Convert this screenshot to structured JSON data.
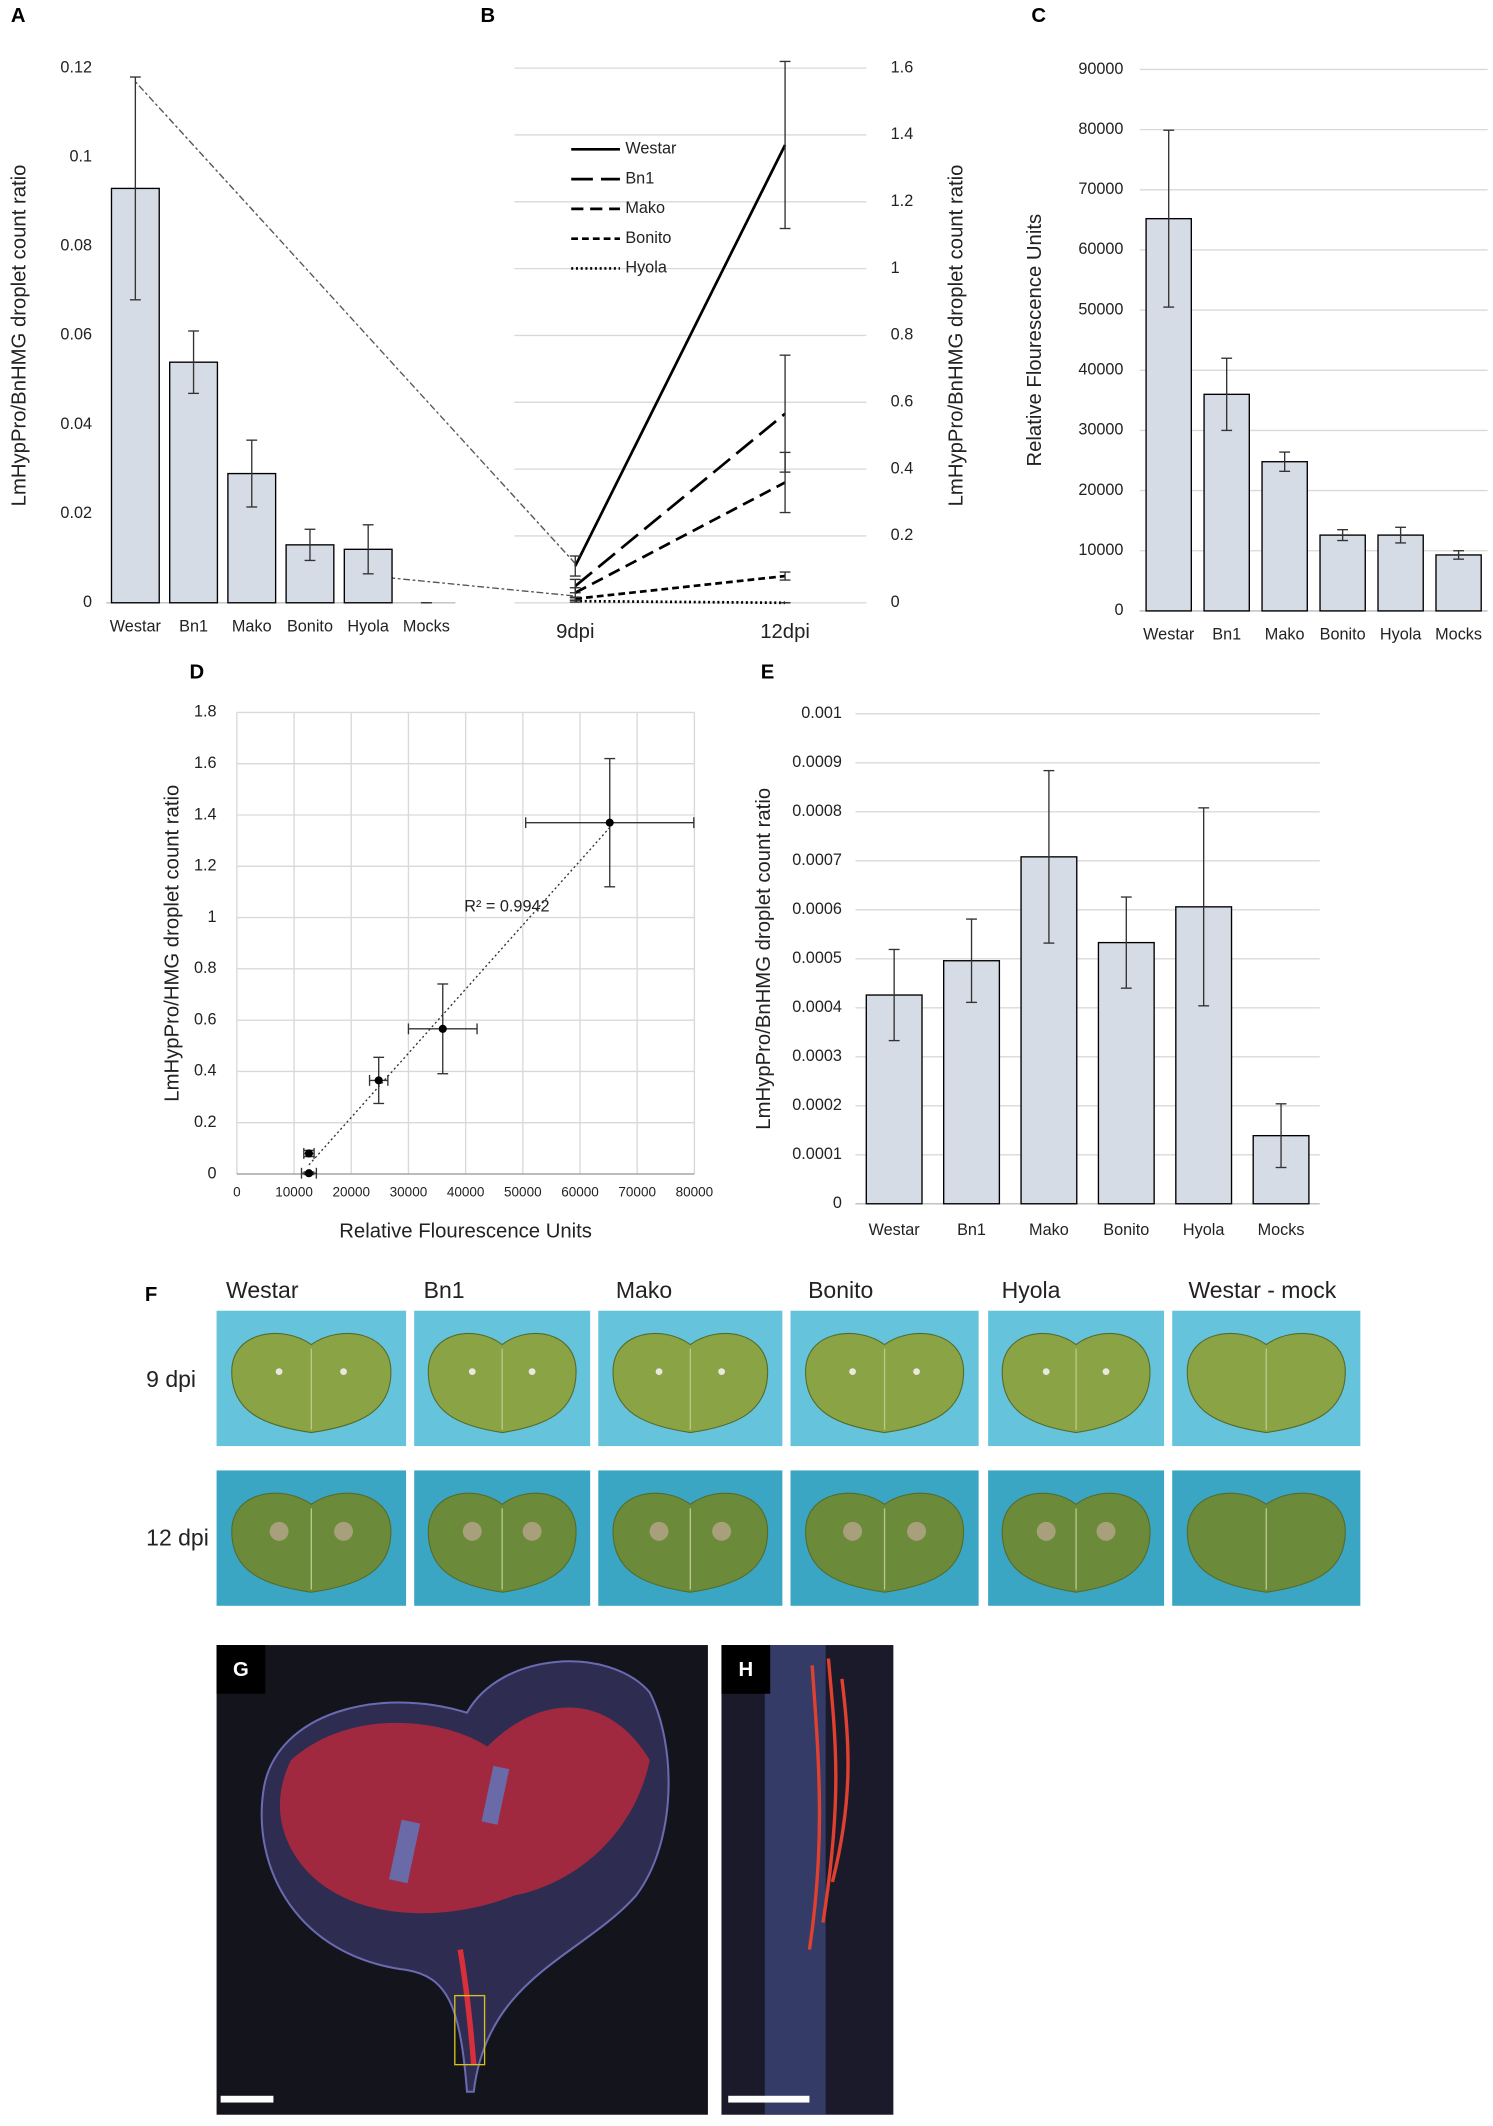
{
  "chart_data": [
    {
      "type": "bar",
      "panel": "A",
      "y_label": "LmHypPro/BnHMG droplet count ratio",
      "categories": [
        "Westar",
        "Bn1",
        "Mako",
        "Bonito",
        "Hyola",
        "Mocks"
      ],
      "values": [
        0.093,
        0.054,
        0.029,
        0.013,
        0.012,
        0
      ],
      "errors": [
        0.025,
        0.007,
        0.0075,
        0.0035,
        0.0055,
        0
      ],
      "color": "#d6dce5",
      "ylim": [
        0,
        0.12
      ],
      "yticks": [
        0,
        0.02,
        0.04,
        0.06,
        0.08,
        0.1,
        0.12
      ],
      "grid": false
    },
    {
      "type": "line",
      "panel": "B",
      "y_label": "LmHypPro/BnHMG droplet count ratio",
      "y_axis_side": "right",
      "categories": [
        "9dpi",
        "12dpi"
      ],
      "series": [
        {
          "name": "Westar",
          "color": "#000000",
          "dash": "solid",
          "values": [
            0.11,
            1.37
          ],
          "errors": [
            0.03,
            0.25
          ]
        },
        {
          "name": "Bn1",
          "color": "#000000",
          "dash": "long",
          "values": [
            0.05,
            0.566
          ],
          "errors": [
            0.02,
            0.175
          ]
        },
        {
          "name": "Mako",
          "color": "#000000",
          "dash": "medium",
          "values": [
            0.03,
            0.36
          ],
          "errors": [
            0.015,
            0.09
          ]
        },
        {
          "name": "Bonito",
          "color": "#000000",
          "dash": "short",
          "values": [
            0.012,
            0.08
          ],
          "errors": [
            0.005,
            0.012
          ]
        },
        {
          "name": "Hyola",
          "color": "#000000",
          "dash": "dotted",
          "values": [
            0.005,
            0
          ],
          "errors": [
            0.003,
            0
          ]
        }
      ],
      "ylim": [
        0,
        1.6
      ],
      "yticks": [
        0,
        0.2,
        0.4,
        0.6,
        0.8,
        1,
        1.2,
        1.4,
        1.6
      ],
      "grid": true
    },
    {
      "type": "bar",
      "panel": "C",
      "y_label": "Relative Flourescence Units",
      "categories": [
        "Westar",
        "Bn1",
        "Mako",
        "Bonito",
        "Hyola",
        "Mocks"
      ],
      "values": [
        65200,
        36000,
        24800,
        12600,
        12600,
        9300
      ],
      "errors": [
        14700,
        6000,
        1600,
        900,
        1300,
        700
      ],
      "color": "#d6dce5",
      "ylim": [
        0,
        90000
      ],
      "yticks": [
        0,
        10000,
        20000,
        30000,
        40000,
        50000,
        60000,
        70000,
        80000,
        90000
      ],
      "grid": true
    },
    {
      "type": "scatter",
      "panel": "D",
      "x_label": "Relative Flourescence Units",
      "y_label": "LmHypPro/HMG droplet count ratio",
      "annotation": "R² = 0.9942",
      "x": [
        65200,
        36000,
        24800,
        12600,
        12600
      ],
      "y": [
        1.37,
        0.566,
        0.365,
        0.08,
        0.003
      ],
      "xerr": [
        14700,
        6000,
        1600,
        900,
        1300
      ],
      "yerr": [
        0.25,
        0.175,
        0.09,
        0.012,
        0.005
      ],
      "color": "#000000",
      "xlim": [
        0,
        80000
      ],
      "xticks": [
        0,
        10000,
        20000,
        30000,
        40000,
        50000,
        60000,
        70000,
        80000
      ],
      "ylim": [
        0,
        1.8
      ],
      "yticks": [
        0,
        0.2,
        0.4,
        0.6,
        0.8,
        1,
        1.2,
        1.4,
        1.6,
        1.8
      ],
      "grid": true
    },
    {
      "type": "bar",
      "panel": "E",
      "y_label": "LmHypPro/BnHMG droplet count ratio",
      "categories": [
        "Westar",
        "Bn1",
        "Mako",
        "Bonito",
        "Hyola",
        "Mocks"
      ],
      "values": [
        0.000426,
        0.000496,
        0.000708,
        0.000533,
        0.000606,
        0.000139
      ],
      "errors": [
        9.3e-05,
        8.5e-05,
        0.000176,
        9.3e-05,
        0.000202,
        6.5e-05
      ],
      "color": "#d6dce5",
      "ylim": [
        0,
        0.001
      ],
      "yticks": [
        0,
        0.0001,
        0.0002,
        0.0003,
        0.0004,
        0.0005,
        0.0006,
        0.0007,
        0.0008,
        0.0009,
        0.001
      ],
      "grid": true
    }
  ],
  "photos": {
    "panel": "F",
    "columns": [
      "Westar",
      "Bn1",
      "Mako",
      "Bonito",
      "Hyola",
      "Westar - mock"
    ],
    "rows": [
      "9 dpi",
      "12 dpi"
    ]
  },
  "micrographs": [
    {
      "panel": "G"
    },
    {
      "panel": "H"
    }
  ]
}
